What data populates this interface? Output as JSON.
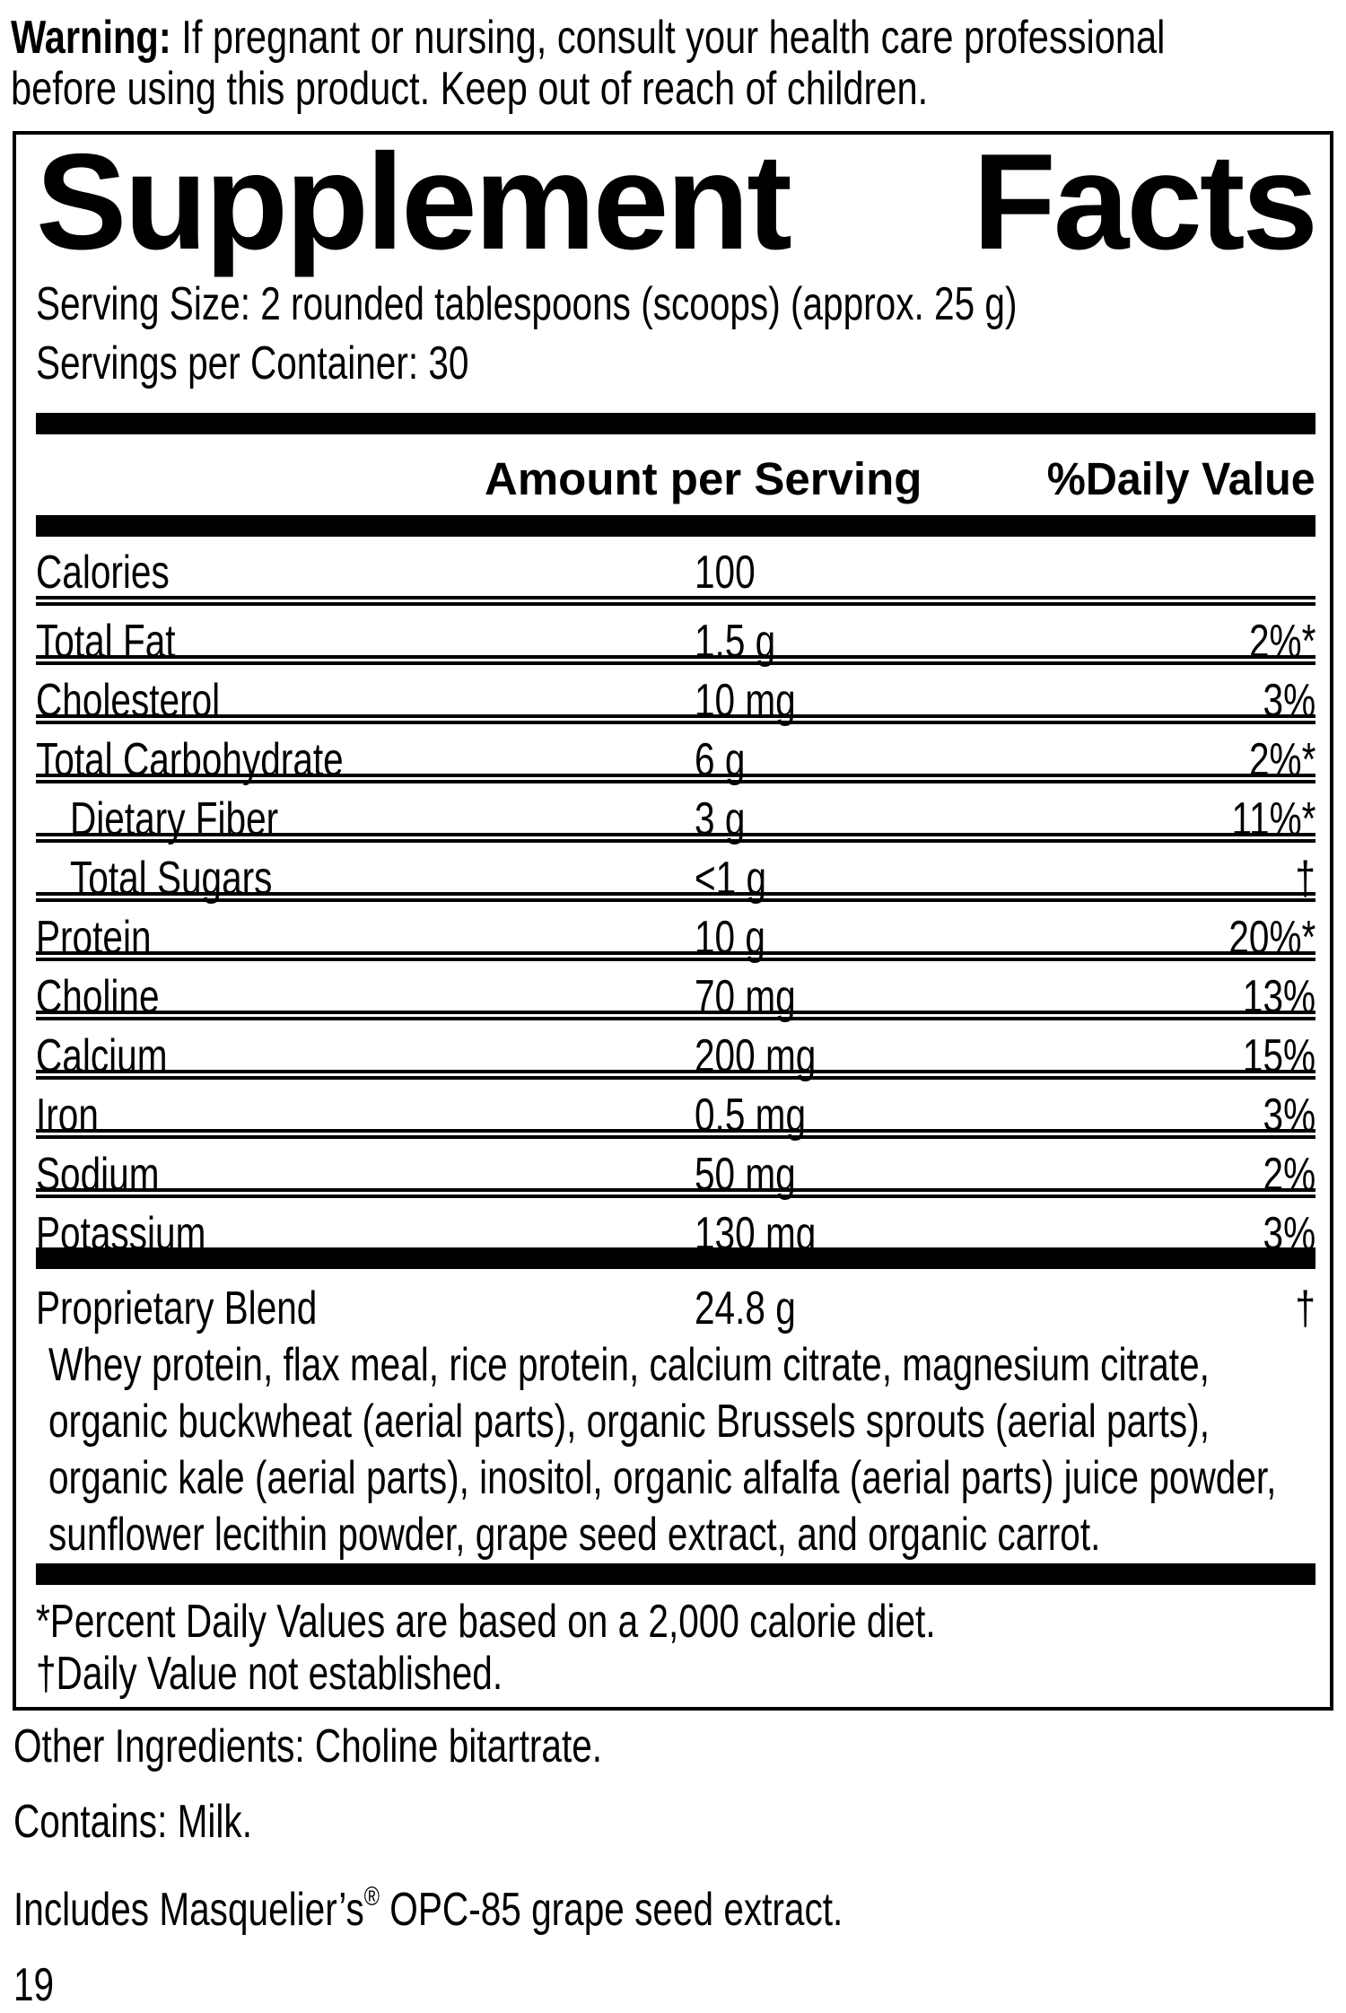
{
  "colors": {
    "ink": "#000000",
    "background": "#ffffff"
  },
  "warning": {
    "label": "Warning:",
    "line1": " If pregnant or nursing, consult your health care professional",
    "line2": "before using this product. Keep out of reach of children."
  },
  "panel": {
    "title_word1": "Supplement",
    "title_word2": "Facts",
    "serving_size": "Serving Size: 2 rounded tablespoons (scoops) (approx. 25 g)",
    "servings_per_container": "Servings per Container: 30",
    "col_amount": "Amount per Serving",
    "col_dv": "%Daily Value",
    "rows": [
      {
        "name": "Calories",
        "amount": "100",
        "dv": ""
      },
      {
        "name": "Total Fat",
        "amount": "1.5 g",
        "dv": "2%*"
      },
      {
        "name": "Cholesterol",
        "amount": "10 mg",
        "dv": "3%"
      },
      {
        "name": "Total Carbohydrate",
        "amount": "6 g",
        "dv": "2%*"
      },
      {
        "name": "Dietary Fiber",
        "amount": "3 g",
        "dv": "11%*"
      },
      {
        "name": "Total Sugars",
        "amount": "<1 g",
        "dv": "†"
      },
      {
        "name": "Protein",
        "amount": "10 g",
        "dv": "20%*"
      },
      {
        "name": "Choline",
        "amount": "70 mg",
        "dv": "13%"
      },
      {
        "name": "Calcium",
        "amount": "200 mg",
        "dv": "15%"
      },
      {
        "name": "Iron",
        "amount": "0.5 mg",
        "dv": "3%"
      },
      {
        "name": "Sodium",
        "amount": "50 mg",
        "dv": "2%"
      },
      {
        "name": "Potassium",
        "amount": "130 mg",
        "dv": "3%"
      }
    ],
    "blend": {
      "name": "Proprietary Blend",
      "amount": "24.8 g",
      "dv": "†",
      "lines": [
        "Whey protein, flax meal, rice protein, calcium citrate, magnesium citrate,",
        "organic buckwheat (aerial parts), organic Brussels sprouts (aerial parts),",
        "organic kale (aerial parts), inositol, organic alfalfa (aerial parts) juice powder,",
        "sunflower lecithin powder, grape seed extract, and organic carrot."
      ]
    },
    "footnotes": [
      "*Percent Daily Values are based on a 2,000 calorie diet.",
      "†Daily Value not established."
    ]
  },
  "bottom": {
    "other_ingredients": "Other Ingredients: Choline bitartrate.",
    "contains": "Contains: Milk.",
    "includes_pre": "Includes Masquelier’s",
    "trademark": "®",
    "includes_post": " OPC-85 grape seed extract.",
    "page_number": "19"
  }
}
